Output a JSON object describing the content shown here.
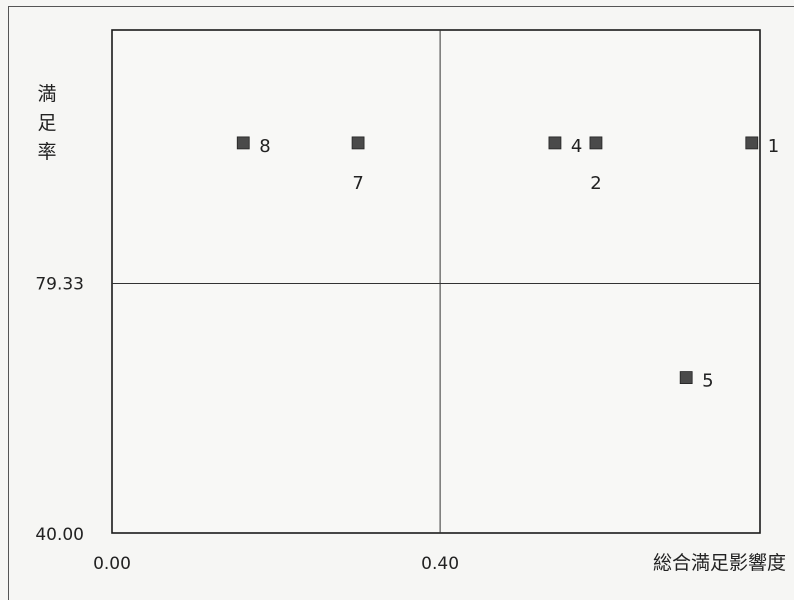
{
  "chart_data": {
    "type": "scatter",
    "xlabel": "総合満足影響度",
    "ylabel": "満足率",
    "x_ticks": [
      "0.00",
      "0.40"
    ],
    "y_ticks": [
      "40.00",
      "79.33"
    ],
    "xlim": [
      0.0,
      0.79
    ],
    "ylim": [
      40.0,
      119.3
    ],
    "quadrant_x": 0.4,
    "quadrant_y": 79.33,
    "grid": false,
    "marker": "square",
    "marker_color": "#4a4a4a",
    "points": [
      {
        "label": "1",
        "x": 0.78,
        "y": 101.5
      },
      {
        "label": "2",
        "x": 0.59,
        "y": 101.5
      },
      {
        "label": "4",
        "x": 0.54,
        "y": 101.5
      },
      {
        "label": "5",
        "x": 0.7,
        "y": 64.5
      },
      {
        "label": "7",
        "x": 0.3,
        "y": 101.5
      },
      {
        "label": "8",
        "x": 0.16,
        "y": 101.5
      }
    ]
  }
}
